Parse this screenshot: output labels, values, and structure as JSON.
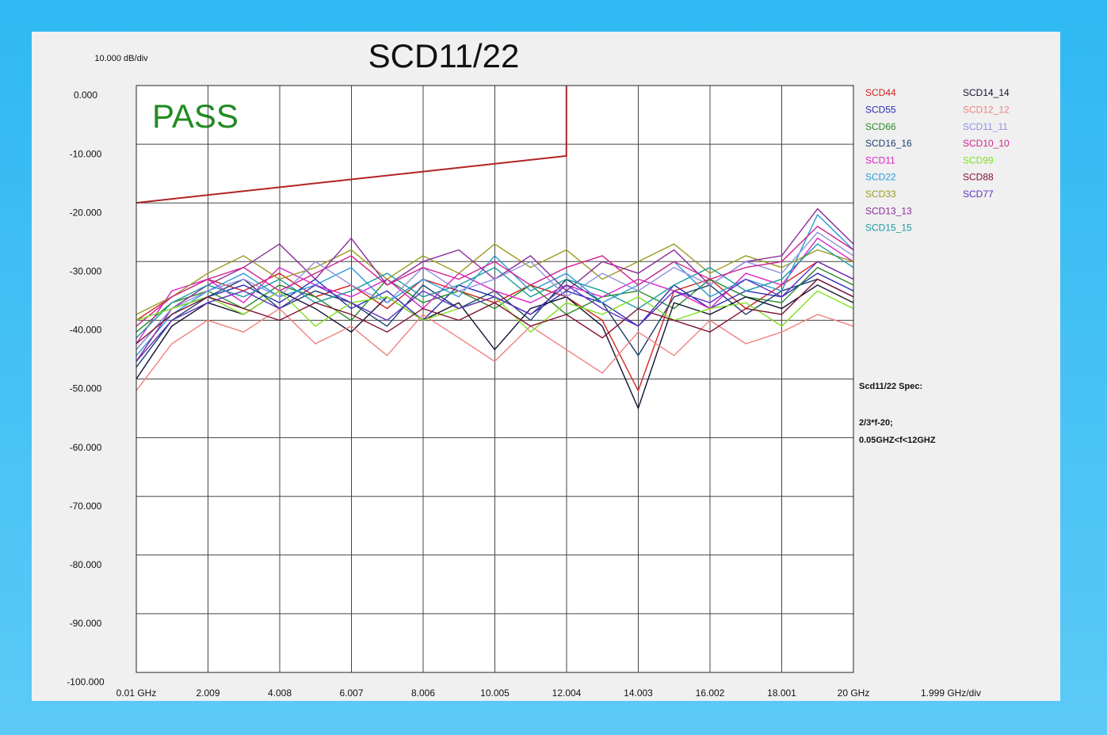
{
  "chart_data": {
    "type": "line",
    "title": "SCD11/22",
    "y_scale_label": "10.000 dB/div",
    "x_scale_label": "1.999 GHz/div",
    "status": "PASS",
    "annotations": [
      "Scd11/22 Spec:",
      "2/3*f-20;",
      "0.05GHZ<f<12GHZ"
    ],
    "grid": true,
    "xlim": [
      0.01,
      20
    ],
    "ylim": [
      -100,
      0
    ],
    "xticks": [
      {
        "value": 0.01,
        "label": "0.01 GHz"
      },
      2.009,
      4.008,
      6.007,
      8.006,
      10.005,
      12.004,
      14.003,
      16.002,
      18.001,
      {
        "value": 20,
        "label": "20 GHz"
      }
    ],
    "yticks": [
      {
        "value": 0,
        "label": "0.000"
      },
      {
        "value": -10,
        "label": "-10.000"
      },
      {
        "value": -20,
        "label": "-20.000"
      },
      {
        "value": -30,
        "label": "-30.000"
      },
      {
        "value": -40,
        "label": "-40.000"
      },
      {
        "value": -50,
        "label": "-50.000"
      },
      {
        "value": -60,
        "label": "-60.000"
      },
      {
        "value": -70,
        "label": "-70.000"
      },
      {
        "value": -80,
        "label": "-80.000"
      },
      {
        "value": -90,
        "label": "-90.000"
      },
      {
        "value": -100,
        "label": "-100.000"
      }
    ],
    "limit_line": {
      "color": "#b22222",
      "x": [
        0.01,
        12,
        12
      ],
      "values": [
        -19.99,
        -12,
        0
      ]
    },
    "x": [
      0.01,
      1,
      2,
      3,
      4,
      5,
      6,
      7,
      8,
      9,
      10,
      11,
      12,
      13,
      14,
      15,
      16,
      17,
      18,
      19,
      20
    ],
    "series": [
      {
        "name": "SCD44",
        "color": "#d42020",
        "values": [
          -40,
          -36,
          -33,
          -35,
          -32,
          -36,
          -34,
          -38,
          -33,
          -35,
          -37,
          -34,
          -36,
          -40,
          -52,
          -35,
          -33,
          -38,
          -34,
          -30,
          -33
        ]
      },
      {
        "name": "SCD55",
        "color": "#2b2bb5",
        "values": [
          -45,
          -38,
          -36,
          -34,
          -37,
          -33,
          -38,
          -35,
          -40,
          -34,
          -36,
          -39,
          -35,
          -37,
          -41,
          -34,
          -38,
          -35,
          -36,
          -32,
          -35
        ]
      },
      {
        "name": "SCD66",
        "color": "#2a8a2a",
        "values": [
          -42,
          -37,
          -35,
          -38,
          -34,
          -36,
          -40,
          -33,
          -37,
          -35,
          -38,
          -34,
          -39,
          -36,
          -35,
          -38,
          -33,
          -36,
          -37,
          -31,
          -34
        ]
      },
      {
        "name": "SCD16_16",
        "color": "#1c3f6e",
        "values": [
          -48,
          -40,
          -36,
          -33,
          -38,
          -35,
          -37,
          -41,
          -34,
          -38,
          -35,
          -40,
          -33,
          -37,
          -46,
          -36,
          -34,
          -39,
          -35,
          -33,
          -36
        ]
      },
      {
        "name": "SCD11",
        "color": "#e020c8",
        "values": [
          -44,
          -35,
          -33,
          -37,
          -31,
          -34,
          -36,
          -33,
          -38,
          -32,
          -35,
          -37,
          -34,
          -36,
          -33,
          -35,
          -38,
          -32,
          -34,
          -26,
          -30
        ]
      },
      {
        "name": "SCD22",
        "color": "#2a9ad8",
        "values": [
          -46,
          -39,
          -35,
          -32,
          -36,
          -34,
          -31,
          -37,
          -33,
          -36,
          -29,
          -35,
          -32,
          -37,
          -34,
          -30,
          -36,
          -33,
          -35,
          -22,
          -28
        ]
      },
      {
        "name": "SCD33",
        "color": "#9a9a20",
        "values": [
          -39,
          -36,
          -32,
          -29,
          -33,
          -31,
          -28,
          -33,
          -29,
          -32,
          -27,
          -31,
          -28,
          -33,
          -30,
          -27,
          -32,
          -29,
          -31,
          -28,
          -30
        ]
      },
      {
        "name": "SCD13_13",
        "color": "#8a2a9a",
        "values": [
          -47,
          -38,
          -34,
          -31,
          -27,
          -33,
          -26,
          -34,
          -30,
          -28,
          -33,
          -29,
          -35,
          -30,
          -32,
          -28,
          -34,
          -30,
          -29,
          -21,
          -27
        ]
      },
      {
        "name": "SCD15_15",
        "color": "#1a9aa0",
        "values": [
          -43,
          -37,
          -34,
          -36,
          -33,
          -37,
          -35,
          -32,
          -36,
          -34,
          -31,
          -36,
          -33,
          -35,
          -38,
          -34,
          -31,
          -35,
          -33,
          -27,
          -31
        ]
      },
      {
        "name": "SCD14_14",
        "color": "#101030",
        "values": [
          -50,
          -41,
          -37,
          -39,
          -35,
          -38,
          -42,
          -36,
          -40,
          -37,
          -45,
          -38,
          -36,
          -41,
          -55,
          -37,
          -39,
          -36,
          -38,
          -34,
          -37
        ]
      },
      {
        "name": "SCD12_12",
        "color": "#f08080",
        "values": [
          -52,
          -44,
          -40,
          -42,
          -38,
          -44,
          -41,
          -46,
          -39,
          -43,
          -47,
          -41,
          -45,
          -49,
          -42,
          -46,
          -40,
          -44,
          -42,
          -39,
          -41
        ]
      },
      {
        "name": "SCD11_11",
        "color": "#9090e0",
        "values": [
          -45,
          -38,
          -35,
          -33,
          -36,
          -30,
          -34,
          -37,
          -31,
          -35,
          -33,
          -30,
          -36,
          -32,
          -35,
          -31,
          -34,
          -30,
          -32,
          -25,
          -29
        ]
      },
      {
        "name": "SCD10_10",
        "color": "#d02090",
        "values": [
          -41,
          -36,
          -33,
          -31,
          -35,
          -32,
          -29,
          -34,
          -31,
          -33,
          -30,
          -34,
          -31,
          -29,
          -34,
          -30,
          -33,
          -31,
          -30,
          -24,
          -28
        ]
      },
      {
        "name": "SCD99",
        "color": "#80e020",
        "values": [
          -40,
          -38,
          -36,
          -39,
          -35,
          -41,
          -37,
          -36,
          -40,
          -38,
          -36,
          -42,
          -37,
          -39,
          -36,
          -40,
          -38,
          -37,
          -41,
          -35,
          -38
        ]
      },
      {
        "name": "SCD88",
        "color": "#801030",
        "values": [
          -44,
          -39,
          -36,
          -38,
          -40,
          -37,
          -39,
          -42,
          -38,
          -40,
          -37,
          -41,
          -39,
          -43,
          -38,
          -40,
          -42,
          -38,
          -39,
          -33,
          -36
        ]
      },
      {
        "name": "SCD77",
        "color": "#6030c0",
        "values": [
          -47,
          -40,
          -37,
          -35,
          -38,
          -34,
          -37,
          -40,
          -35,
          -38,
          -36,
          -39,
          -34,
          -38,
          -41,
          -35,
          -37,
          -33,
          -36,
          -30,
          -33
        ]
      }
    ]
  }
}
